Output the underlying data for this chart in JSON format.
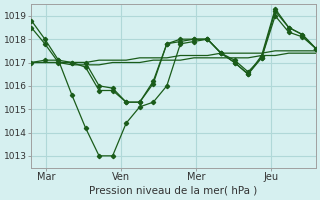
{
  "title": "",
  "xlabel": "Pression niveau de la mer( hPa )",
  "ylim": [
    1012.5,
    1019.5
  ],
  "yticks": [
    1013,
    1014,
    1015,
    1016,
    1017,
    1018,
    1019
  ],
  "bg_color": "#d6f0f0",
  "grid_color": "#b0d8d8",
  "line_color": "#1a5c1a",
  "line_color2": "#2d7a2d",
  "xtick_labels": [
    "Mar",
    "Ven",
    "Mer",
    "Jeu"
  ],
  "xtick_positions": [
    0.5,
    3.0,
    5.5,
    8.0
  ],
  "vline_positions": [
    0.5,
    3.0,
    5.5,
    8.0
  ],
  "series": [
    [
      1018.8,
      1018.0,
      1017.1,
      1017.0,
      1017.0,
      1016.0,
      1015.9,
      1015.3,
      1015.3,
      1016.2,
      1017.8,
      1017.9,
      1018.0,
      1018.0,
      1017.4,
      1017.0,
      1016.5,
      1017.2,
      1019.2,
      1018.5,
      1018.2,
      1017.6
    ],
    [
      1018.5,
      1017.8,
      1017.0,
      1017.0,
      1016.8,
      1015.8,
      1015.8,
      1015.3,
      1015.3,
      1016.1,
      1017.8,
      1018.0,
      1018.0,
      1018.0,
      1017.4,
      1017.1,
      1016.6,
      1017.2,
      1019.0,
      1018.3,
      1018.1,
      1017.6
    ],
    [
      1017.0,
      1017.1,
      1017.1,
      1015.6,
      1014.2,
      1013.0,
      1013.0,
      1014.4,
      1015.1,
      1015.3,
      1016.0,
      1017.8,
      1017.9,
      1018.0,
      1017.4,
      1017.0,
      1016.5,
      1017.3,
      1019.3,
      1018.5,
      1018.2,
      1017.6
    ],
    [
      1017.0,
      1017.0,
      1017.0,
      1016.9,
      1016.9,
      1016.9,
      1017.0,
      1017.0,
      1017.0,
      1017.1,
      1017.1,
      1017.1,
      1017.2,
      1017.2,
      1017.2,
      1017.2,
      1017.2,
      1017.3,
      1017.3,
      1017.4,
      1017.4,
      1017.4
    ],
    [
      1017.0,
      1017.0,
      1017.0,
      1017.0,
      1017.0,
      1017.1,
      1017.1,
      1017.1,
      1017.2,
      1017.2,
      1017.2,
      1017.3,
      1017.3,
      1017.3,
      1017.4,
      1017.4,
      1017.4,
      1017.4,
      1017.5,
      1017.5,
      1017.5,
      1017.5
    ]
  ],
  "marker_series": 2,
  "n_points": 22
}
